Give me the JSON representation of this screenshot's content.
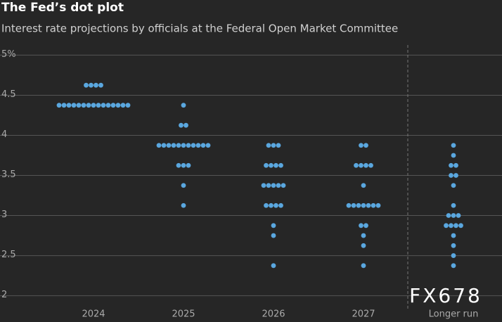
{
  "chart_data": {
    "type": "dot",
    "title": "The Fed’s dot plot",
    "subtitle": "Interest rate projections by officials at the Federal Open Market Committee",
    "watermark": "FX678",
    "categories": [
      "2024",
      "2025",
      "2026",
      "2027",
      "Longer run"
    ],
    "values": [
      [
        4.625,
        4.625,
        4.625,
        4.625,
        4.375,
        4.375,
        4.375,
        4.375,
        4.375,
        4.375,
        4.375,
        4.375,
        4.375,
        4.375,
        4.375,
        4.375,
        4.375,
        4.375,
        4.375
      ],
      [
        4.375,
        4.125,
        4.125,
        3.875,
        3.875,
        3.875,
        3.875,
        3.875,
        3.875,
        3.875,
        3.875,
        3.875,
        3.875,
        3.875,
        3.625,
        3.625,
        3.625,
        3.375,
        3.125
      ],
      [
        3.875,
        3.875,
        3.875,
        3.625,
        3.625,
        3.625,
        3.625,
        3.375,
        3.375,
        3.375,
        3.375,
        3.375,
        3.125,
        3.125,
        3.125,
        3.125,
        2.875,
        2.75,
        2.375
      ],
      [
        3.875,
        3.875,
        3.625,
        3.625,
        3.625,
        3.625,
        3.375,
        3.125,
        3.125,
        3.125,
        3.125,
        3.125,
        3.125,
        3.125,
        2.875,
        2.875,
        2.75,
        2.625,
        2.375
      ],
      [
        3.875,
        3.75,
        3.625,
        3.625,
        3.5,
        3.5,
        3.375,
        3.125,
        3.0,
        3.0,
        3.0,
        2.875,
        2.875,
        2.875,
        2.875,
        2.75,
        2.625,
        2.5,
        2.375
      ]
    ],
    "color": "#5aa7df",
    "ylim": [
      1.9,
      5.1
    ],
    "yticks": [
      2,
      2.5,
      3,
      3.5,
      4,
      4.5,
      {
        "value": 5,
        "label": "5%"
      }
    ],
    "grid": true
  }
}
